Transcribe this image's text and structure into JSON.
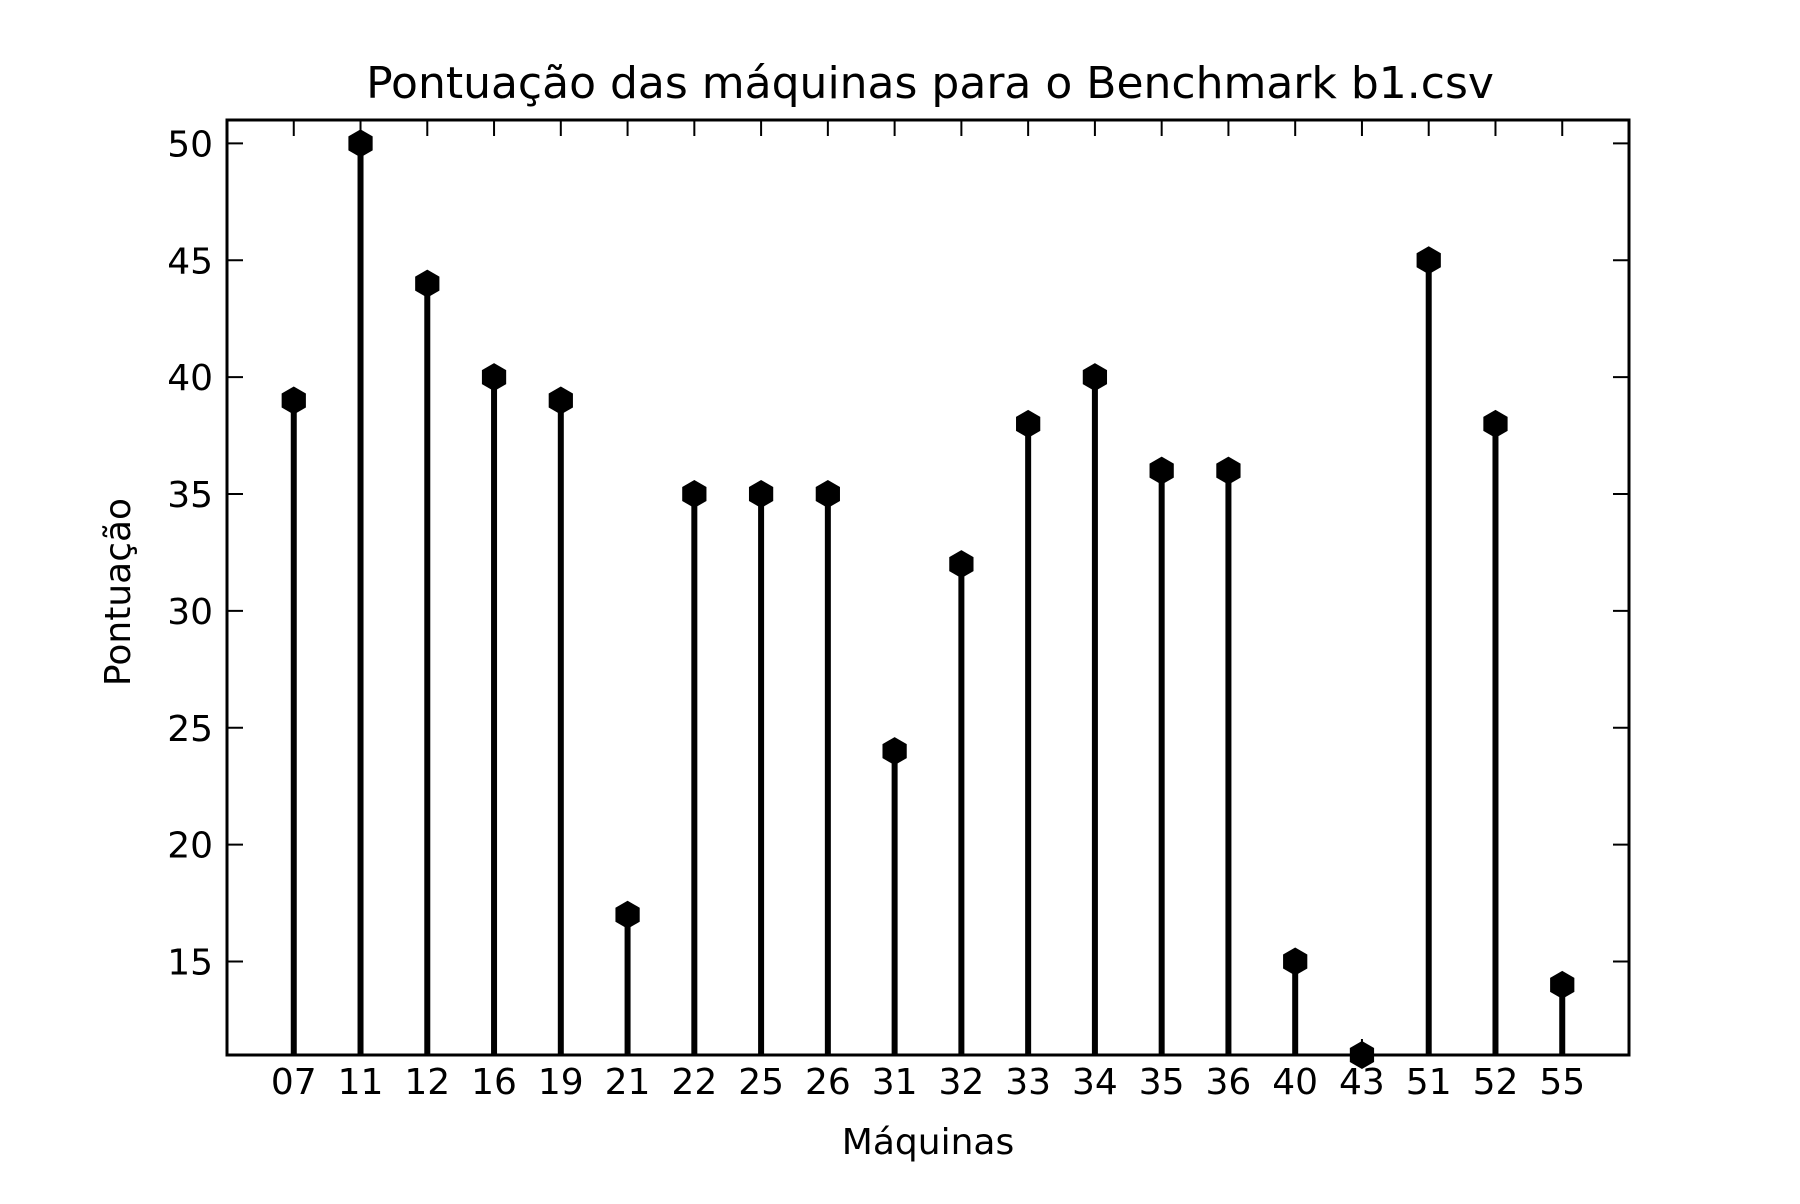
{
  "chart_data": {
    "type": "stem",
    "title": "Pontuação das máquinas para o Benchmark b1.csv",
    "xlabel": "Máquinas",
    "ylabel": "Pontuação",
    "categories": [
      "07",
      "11",
      "12",
      "16",
      "19",
      "21",
      "22",
      "25",
      "26",
      "31",
      "32",
      "33",
      "34",
      "35",
      "36",
      "40",
      "43",
      "51",
      "52",
      "55"
    ],
    "values": [
      39,
      50,
      44,
      40,
      39,
      17,
      35,
      35,
      35,
      24,
      32,
      38,
      40,
      36,
      36,
      15,
      11,
      45,
      38,
      14
    ],
    "ylim": [
      11,
      51
    ],
    "yticks": [
      15,
      20,
      25,
      30,
      35,
      40,
      45,
      50
    ],
    "grid": false,
    "legend": "none",
    "marker": "hexagon",
    "color": "#000000"
  }
}
